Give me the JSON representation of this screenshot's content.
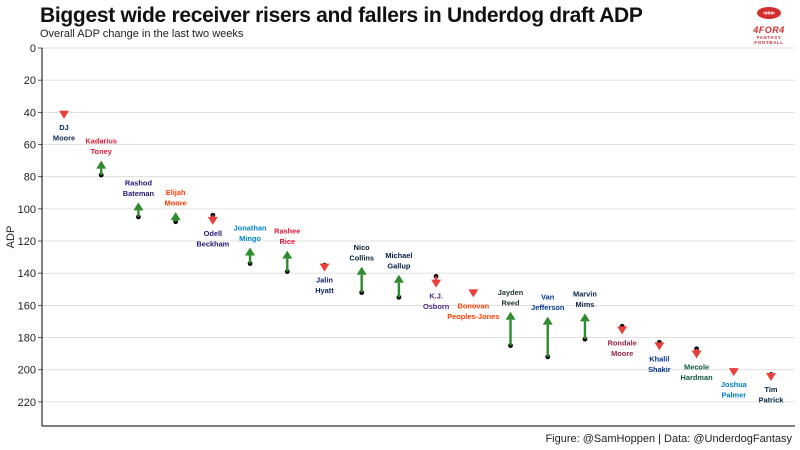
{
  "title": "Biggest wide receiver risers and fallers in Underdog draft ADP",
  "subtitle": "Overall ADP change in the last two weeks",
  "caption": "Figure: @SamHoppen | Data: @UnderdogFantasy",
  "logo": {
    "main": "4FOR4",
    "sub": "FANTASY FOOTBALL"
  },
  "colors": {
    "riser": "#2e8b2e",
    "faller": "#e8413c",
    "dot": "#000000",
    "grid": "#d9d9d9"
  },
  "chart_data": {
    "type": "scatter",
    "ylabel": "ADP",
    "xlabel": "",
    "ylim": [
      0,
      235
    ],
    "y_reversed": true,
    "yticks": [
      0,
      20,
      40,
      60,
      80,
      100,
      120,
      140,
      160,
      180,
      200,
      220
    ],
    "grid": true,
    "players": [
      {
        "name": "DJ Moore",
        "label_lines": [
          "DJ",
          "Moore"
        ],
        "prev_adp": 41,
        "curr_adp": 44,
        "label_color": "#0b2a4a"
      },
      {
        "name": "Kadarius Toney",
        "label_lines": [
          "Kadarius",
          "Toney"
        ],
        "prev_adp": 79,
        "curr_adp": 70,
        "label_color": "#e31837"
      },
      {
        "name": "Rashod Bateman",
        "label_lines": [
          "Rashod",
          "Bateman"
        ],
        "prev_adp": 105,
        "curr_adp": 96,
        "label_color": "#241773"
      },
      {
        "name": "Elijah Moore",
        "label_lines": [
          "Elijah",
          "Moore"
        ],
        "prev_adp": 108,
        "curr_adp": 102,
        "label_color": "#ff3c00"
      },
      {
        "name": "Odell Beckham",
        "label_lines": [
          "Odell",
          "Beckham"
        ],
        "prev_adp": 104,
        "curr_adp": 110,
        "label_color": "#241773"
      },
      {
        "name": "Jonathan Mingo",
        "label_lines": [
          "Jonathan",
          "Mingo"
        ],
        "prev_adp": 134,
        "curr_adp": 124,
        "label_color": "#0085ca"
      },
      {
        "name": "Rashee Rice",
        "label_lines": [
          "Rashee",
          "Rice"
        ],
        "prev_adp": 139,
        "curr_adp": 126,
        "label_color": "#e31837"
      },
      {
        "name": "Jalin Hyatt",
        "label_lines": [
          "Jalin",
          "Hyatt"
        ],
        "prev_adp": 135,
        "curr_adp": 139,
        "label_color": "#0b2265"
      },
      {
        "name": "Nico Collins",
        "label_lines": [
          "Nico",
          "Collins"
        ],
        "prev_adp": 152,
        "curr_adp": 136,
        "label_color": "#03202f"
      },
      {
        "name": "Michael Gallup",
        "label_lines": [
          "Michael",
          "Gallup"
        ],
        "prev_adp": 155,
        "curr_adp": 141,
        "label_color": "#041e42"
      },
      {
        "name": "K.J. Osborn",
        "label_lines": [
          "K.J.",
          "Osborn"
        ],
        "prev_adp": 142,
        "curr_adp": 149,
        "label_color": "#4f2683"
      },
      {
        "name": "Donovan Peoples-Jones",
        "label_lines": [
          "Donovan",
          "Peoples-Jones"
        ],
        "prev_adp": 152,
        "curr_adp": 155,
        "label_color": "#ff3c00"
      },
      {
        "name": "Jayden Reed",
        "label_lines": [
          "Jayden",
          "Reed"
        ],
        "prev_adp": 185,
        "curr_adp": 164,
        "label_color": "#203731"
      },
      {
        "name": "Van Jefferson",
        "label_lines": [
          "Van",
          "Jefferson"
        ],
        "prev_adp": 192,
        "curr_adp": 167,
        "label_color": "#003594"
      },
      {
        "name": "Marvin Mims",
        "label_lines": [
          "Marvin",
          "Mims"
        ],
        "prev_adp": 181,
        "curr_adp": 165,
        "label_color": "#0a2343"
      },
      {
        "name": "Rondale Moore",
        "label_lines": [
          "Rondale",
          "Moore"
        ],
        "prev_adp": 173,
        "curr_adp": 178,
        "label_color": "#97233f"
      },
      {
        "name": "Khalil Shakir",
        "label_lines": [
          "Khalil",
          "Shakir"
        ],
        "prev_adp": 183,
        "curr_adp": 188,
        "label_color": "#00338d"
      },
      {
        "name": "Mecole Hardman",
        "label_lines": [
          "Mecole",
          "Hardman"
        ],
        "prev_adp": 187,
        "curr_adp": 193,
        "label_color": "#125740"
      },
      {
        "name": "Joshua Palmer",
        "label_lines": [
          "Joshua",
          "Palmer"
        ],
        "prev_adp": 201,
        "curr_adp": 204,
        "label_color": "#0080c6"
      },
      {
        "name": "Tim Patrick",
        "label_lines": [
          "Tim",
          "Patrick"
        ],
        "prev_adp": 203,
        "curr_adp": 207,
        "label_color": "#002244"
      }
    ]
  }
}
